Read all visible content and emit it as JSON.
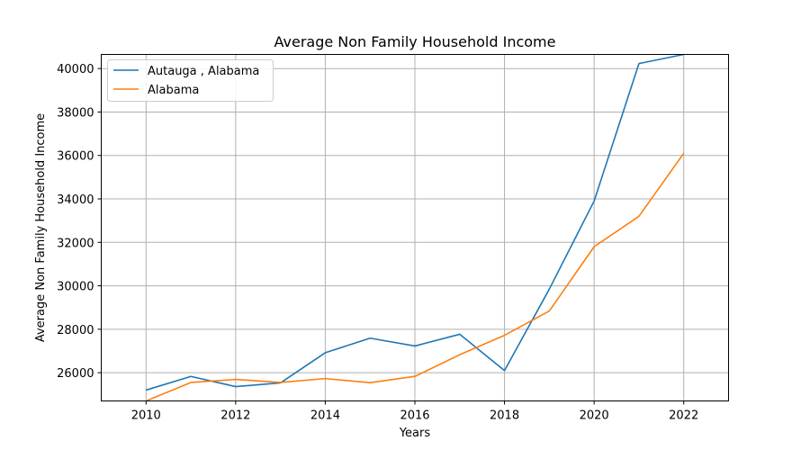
{
  "chart_data": {
    "type": "line",
    "title": "Average Non Family Household Income",
    "xlabel": "Years",
    "ylabel": "Average Non Family Household Income",
    "x": [
      2010,
      2011,
      2012,
      2013,
      2014,
      2015,
      2016,
      2017,
      2018,
      2019,
      2020,
      2021,
      2022
    ],
    "xlim": [
      2009,
      2023
    ],
    "ylim": [
      24700,
      40650
    ],
    "xticks": [
      2010,
      2012,
      2014,
      2016,
      2018,
      2020,
      2022
    ],
    "yticks": [
      26000,
      28000,
      30000,
      32000,
      34000,
      36000,
      38000,
      40000
    ],
    "grid": true,
    "legend_position": "top-left",
    "series": [
      {
        "name": "Autauga , Alabama",
        "color": "#1f77b4",
        "values": [
          25200,
          25830,
          25360,
          25530,
          26920,
          27590,
          27230,
          27770,
          26100,
          29850,
          33900,
          40230,
          40650
        ]
      },
      {
        "name": "Alabama",
        "color": "#ff7f0e",
        "values": [
          24700,
          25550,
          25690,
          25550,
          25730,
          25540,
          25830,
          26830,
          27720,
          28840,
          31800,
          33200,
          36100
        ]
      }
    ]
  }
}
